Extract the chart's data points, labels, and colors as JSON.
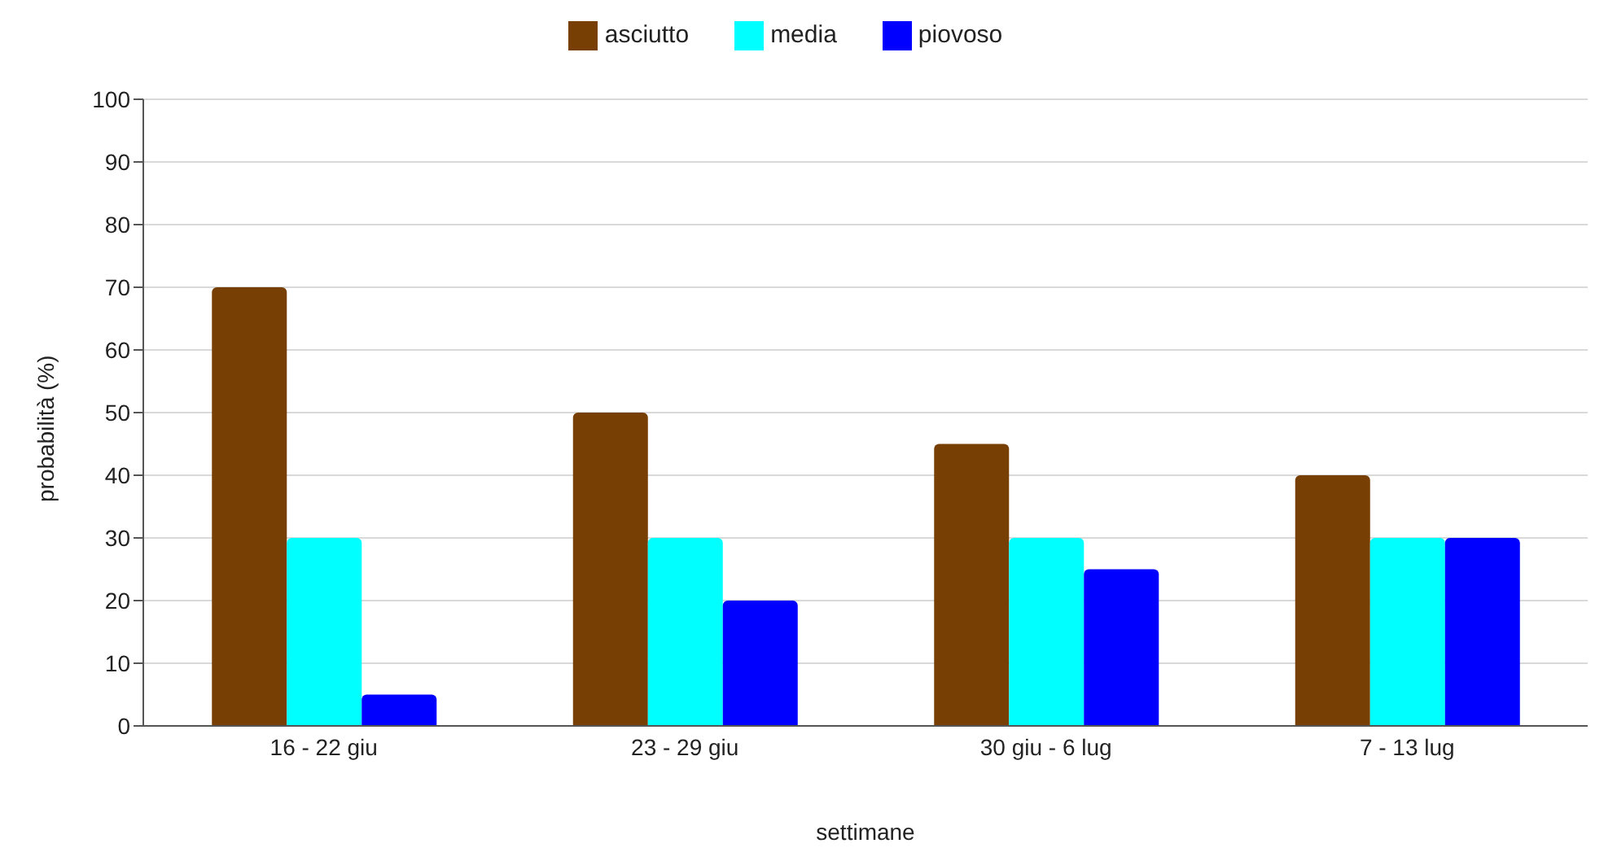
{
  "chart_data": {
    "type": "bar",
    "xlabel": "settimane",
    "ylabel": "probabilità (%)",
    "categories": [
      "16 - 22 giu",
      "23 - 29 giu",
      "30 giu - 6 lug",
      "7 - 13  lug"
    ],
    "series": [
      {
        "name": "asciutto",
        "color": "#773f04",
        "values": [
          70,
          50,
          45,
          40
        ]
      },
      {
        "name": "media",
        "color": "#00ffff",
        "values": [
          30,
          30,
          30,
          30
        ]
      },
      {
        "name": "piovoso",
        "color": "#0000ff",
        "values": [
          5,
          20,
          25,
          30
        ]
      }
    ],
    "ylim": [
      0,
      100
    ],
    "yticks": [
      0,
      10,
      20,
      30,
      40,
      50,
      60,
      70,
      80,
      90,
      100
    ],
    "grid": "y",
    "legend": "top"
  }
}
